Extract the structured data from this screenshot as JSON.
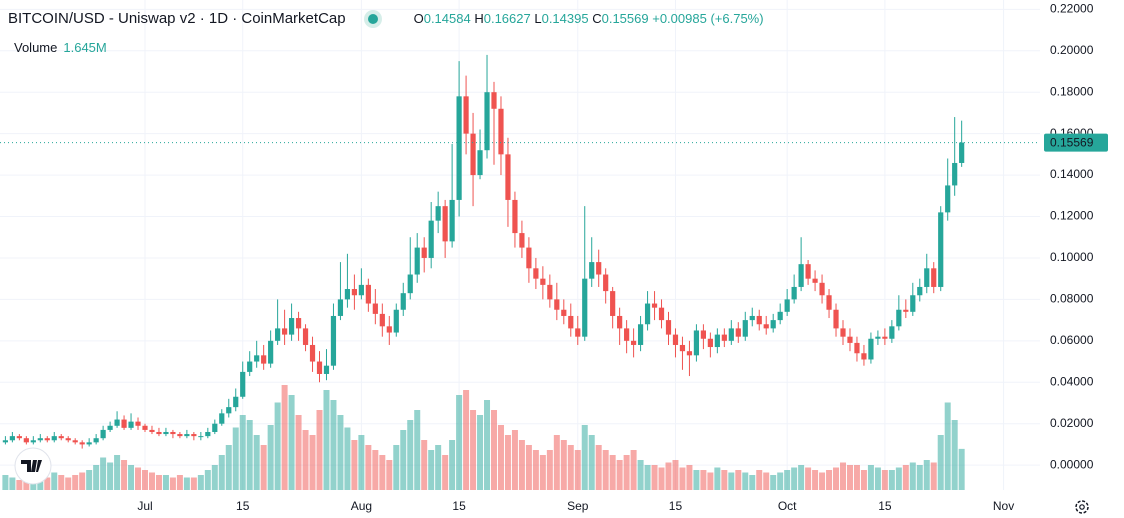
{
  "chart_data": {
    "type": "candlestick",
    "title": "BITCOIN/USD - Uniswap v2 · 1D · CoinMarketCap",
    "ohlc_letters": [
      "O",
      "H",
      "L",
      "C"
    ],
    "change": {
      "value": 0.00985,
      "label": "+0.00985"
    },
    "change_pct": {
      "value": 6.75,
      "label": "(+6.75%)"
    },
    "volume_title": "Volume",
    "volume_last": {
      "value": 1.645,
      "label": "1.645M"
    },
    "up_color": "#26a69a",
    "down_color": "#ef5350",
    "ylim": [
      -0.012,
      0.2245
    ],
    "yticks": [
      {
        "value": 0.22,
        "label": "0.22000"
      },
      {
        "value": 0.2,
        "label": "0.20000"
      },
      {
        "value": 0.18,
        "label": "0.18000"
      },
      {
        "value": 0.16,
        "label": "0.16000"
      },
      {
        "value": 0.14,
        "label": "0.14000"
      },
      {
        "value": 0.12,
        "label": "0.12000"
      },
      {
        "value": 0.1,
        "label": "0.10000"
      },
      {
        "value": 0.08,
        "label": "0.08000"
      },
      {
        "value": 0.06,
        "label": "0.06000"
      },
      {
        "value": 0.04,
        "label": "0.04000"
      },
      {
        "value": 0.02,
        "label": "0.02000"
      },
      {
        "value": 0,
        "label": "0.00000"
      }
    ],
    "xticks": [
      {
        "value": "07-01",
        "label": "Jul"
      },
      {
        "value": "07-15",
        "label": "15"
      },
      {
        "value": "08-01",
        "label": "Aug"
      },
      {
        "value": "08-15",
        "label": "15"
      },
      {
        "value": "09-01",
        "label": "Sep"
      },
      {
        "value": "09-15",
        "label": "15"
      },
      {
        "value": "10-01",
        "label": "Oct"
      },
      {
        "value": "10-15",
        "label": "15"
      },
      {
        "value": "11-01",
        "label": "Nov"
      }
    ],
    "grid": true,
    "x": [
      "06-11",
      "06-12",
      "06-13",
      "06-14",
      "06-15",
      "06-16",
      "06-17",
      "06-18",
      "06-19",
      "06-20",
      "06-21",
      "06-22",
      "06-23",
      "06-24",
      "06-25",
      "06-26",
      "06-27",
      "06-28",
      "06-29",
      "06-30",
      "07-01",
      "07-02",
      "07-03",
      "07-04",
      "07-05",
      "07-06",
      "07-07",
      "07-08",
      "07-09",
      "07-10",
      "07-11",
      "07-12",
      "07-13",
      "07-14",
      "07-15",
      "07-16",
      "07-17",
      "07-18",
      "07-19",
      "07-20",
      "07-21",
      "07-22",
      "07-23",
      "07-24",
      "07-25",
      "07-26",
      "07-27",
      "07-28",
      "07-29",
      "07-30",
      "07-31",
      "08-01",
      "08-02",
      "08-03",
      "08-04",
      "08-05",
      "08-06",
      "08-07",
      "08-08",
      "08-09",
      "08-10",
      "08-11",
      "08-12",
      "08-13",
      "08-14",
      "08-15",
      "08-16",
      "08-17",
      "08-18",
      "08-19",
      "08-20",
      "08-21",
      "08-22",
      "08-23",
      "08-24",
      "08-25",
      "08-26",
      "08-27",
      "08-28",
      "08-29",
      "08-30",
      "08-31",
      "09-01",
      "09-02",
      "09-03",
      "09-04",
      "09-05",
      "09-06",
      "09-07",
      "09-08",
      "09-09",
      "09-10",
      "09-11",
      "09-12",
      "09-13",
      "09-14",
      "09-15",
      "09-16",
      "09-17",
      "09-18",
      "09-19",
      "09-20",
      "09-21",
      "09-22",
      "09-23",
      "09-24",
      "09-25",
      "09-26",
      "09-27",
      "09-28",
      "09-29",
      "09-30",
      "10-01",
      "10-02",
      "10-03",
      "10-04",
      "10-05",
      "10-06",
      "10-07",
      "10-08",
      "10-09",
      "10-10",
      "10-11",
      "10-12",
      "10-13",
      "10-14",
      "10-15",
      "10-16",
      "10-17",
      "10-18",
      "10-19",
      "10-20",
      "10-21",
      "10-22",
      "10-23",
      "10-24",
      "10-25",
      "10-26"
    ],
    "open": [
      0.011,
      0.012,
      0.014,
      0.013,
      0.011,
      0.012,
      0.013,
      0.012,
      0.014,
      0.013,
      0.012,
      0.011,
      0.01,
      0.011,
      0.013,
      0.017,
      0.019,
      0.022,
      0.018,
      0.021,
      0.019,
      0.017,
      0.016,
      0.015,
      0.016,
      0.015,
      0.014,
      0.015,
      0.014,
      0.014,
      0.016,
      0.02,
      0.025,
      0.028,
      0.033,
      0.045,
      0.05,
      0.053,
      0.049,
      0.06,
      0.066,
      0.063,
      0.071,
      0.066,
      0.058,
      0.05,
      0.044,
      0.048,
      0.072,
      0.08,
      0.085,
      0.082,
      0.087,
      0.078,
      0.073,
      0.067,
      0.064,
      0.075,
      0.083,
      0.092,
      0.105,
      0.1,
      0.118,
      0.125,
      0.108,
      0.128,
      0.178,
      0.16,
      0.14,
      0.152,
      0.18,
      0.172,
      0.15,
      0.128,
      0.112,
      0.105,
      0.095,
      0.09,
      0.087,
      0.08,
      0.075,
      0.072,
      0.066,
      0.062,
      0.09,
      0.098,
      0.092,
      0.084,
      0.072,
      0.066,
      0.06,
      0.058,
      0.068,
      0.078,
      0.076,
      0.07,
      0.063,
      0.058,
      0.055,
      0.053,
      0.065,
      0.061,
      0.057,
      0.063,
      0.06,
      0.066,
      0.062,
      0.07,
      0.072,
      0.068,
      0.066,
      0.07,
      0.074,
      0.08,
      0.086,
      0.097,
      0.09,
      0.088,
      0.082,
      0.075,
      0.066,
      0.062,
      0.059,
      0.054,
      0.051,
      0.061,
      0.062,
      0.061,
      0.067,
      0.075,
      0.074,
      0.082,
      0.086,
      0.095,
      0.086,
      0.122,
      0.135,
      0.14584
    ],
    "high": [
      0.014,
      0.016,
      0.015,
      0.014,
      0.014,
      0.015,
      0.014,
      0.016,
      0.015,
      0.014,
      0.013,
      0.012,
      0.013,
      0.015,
      0.019,
      0.021,
      0.026,
      0.024,
      0.025,
      0.023,
      0.02,
      0.019,
      0.018,
      0.018,
      0.017,
      0.016,
      0.017,
      0.016,
      0.016,
      0.018,
      0.022,
      0.027,
      0.032,
      0.037,
      0.05,
      0.055,
      0.06,
      0.058,
      0.065,
      0.08,
      0.075,
      0.078,
      0.074,
      0.068,
      0.062,
      0.055,
      0.056,
      0.078,
      0.098,
      0.102,
      0.092,
      0.095,
      0.09,
      0.085,
      0.078,
      0.072,
      0.078,
      0.088,
      0.11,
      0.112,
      0.11,
      0.127,
      0.132,
      0.128,
      0.155,
      0.195,
      0.188,
      0.17,
      0.162,
      0.198,
      0.185,
      0.178,
      0.158,
      0.132,
      0.118,
      0.11,
      0.1,
      0.096,
      0.092,
      0.088,
      0.08,
      0.078,
      0.072,
      0.125,
      0.11,
      0.104,
      0.095,
      0.086,
      0.076,
      0.07,
      0.066,
      0.072,
      0.084,
      0.084,
      0.08,
      0.074,
      0.066,
      0.062,
      0.06,
      0.068,
      0.068,
      0.064,
      0.066,
      0.066,
      0.07,
      0.069,
      0.074,
      0.076,
      0.075,
      0.072,
      0.073,
      0.078,
      0.085,
      0.092,
      0.11,
      0.099,
      0.094,
      0.092,
      0.085,
      0.078,
      0.07,
      0.066,
      0.062,
      0.058,
      0.064,
      0.065,
      0.066,
      0.07,
      0.082,
      0.08,
      0.088,
      0.09,
      0.102,
      0.098,
      0.125,
      0.148,
      0.168,
      0.16627
    ],
    "low": [
      0.01,
      0.011,
      0.012,
      0.01,
      0.01,
      0.011,
      0.011,
      0.011,
      0.012,
      0.011,
      0.01,
      0.008,
      0.009,
      0.01,
      0.012,
      0.016,
      0.018,
      0.017,
      0.017,
      0.017,
      0.016,
      0.015,
      0.014,
      0.014,
      0.013,
      0.013,
      0.013,
      0.012,
      0.012,
      0.013,
      0.015,
      0.019,
      0.023,
      0.026,
      0.032,
      0.043,
      0.047,
      0.046,
      0.047,
      0.058,
      0.058,
      0.06,
      0.06,
      0.055,
      0.045,
      0.04,
      0.041,
      0.046,
      0.07,
      0.076,
      0.075,
      0.08,
      0.074,
      0.068,
      0.062,
      0.058,
      0.062,
      0.072,
      0.08,
      0.088,
      0.093,
      0.095,
      0.112,
      0.1,
      0.105,
      0.12,
      0.15,
      0.125,
      0.138,
      0.148,
      0.145,
      0.14,
      0.115,
      0.105,
      0.1,
      0.088,
      0.085,
      0.08,
      0.076,
      0.07,
      0.068,
      0.062,
      0.058,
      0.06,
      0.086,
      0.086,
      0.078,
      0.066,
      0.058,
      0.054,
      0.052,
      0.055,
      0.065,
      0.07,
      0.066,
      0.058,
      0.052,
      0.046,
      0.043,
      0.05,
      0.056,
      0.052,
      0.054,
      0.057,
      0.058,
      0.059,
      0.06,
      0.067,
      0.065,
      0.063,
      0.064,
      0.068,
      0.072,
      0.078,
      0.084,
      0.087,
      0.084,
      0.078,
      0.071,
      0.062,
      0.058,
      0.055,
      0.05,
      0.048,
      0.049,
      0.058,
      0.058,
      0.059,
      0.065,
      0.071,
      0.072,
      0.079,
      0.083,
      0.083,
      0.084,
      0.118,
      0.13,
      0.14395
    ],
    "close": [
      0.012,
      0.014,
      0.013,
      0.011,
      0.012,
      0.013,
      0.012,
      0.014,
      0.013,
      0.012,
      0.011,
      0.01,
      0.011,
      0.013,
      0.017,
      0.019,
      0.022,
      0.018,
      0.021,
      0.019,
      0.017,
      0.016,
      0.015,
      0.016,
      0.015,
      0.014,
      0.015,
      0.014,
      0.014,
      0.016,
      0.02,
      0.025,
      0.028,
      0.033,
      0.045,
      0.05,
      0.053,
      0.049,
      0.06,
      0.066,
      0.063,
      0.071,
      0.066,
      0.058,
      0.05,
      0.044,
      0.048,
      0.072,
      0.08,
      0.085,
      0.082,
      0.087,
      0.078,
      0.073,
      0.067,
      0.064,
      0.075,
      0.083,
      0.092,
      0.105,
      0.1,
      0.118,
      0.125,
      0.108,
      0.128,
      0.178,
      0.16,
      0.14,
      0.152,
      0.18,
      0.172,
      0.15,
      0.128,
      0.112,
      0.105,
      0.095,
      0.09,
      0.087,
      0.08,
      0.075,
      0.072,
      0.066,
      0.062,
      0.09,
      0.098,
      0.092,
      0.084,
      0.072,
      0.066,
      0.06,
      0.058,
      0.068,
      0.078,
      0.076,
      0.07,
      0.063,
      0.058,
      0.055,
      0.053,
      0.065,
      0.061,
      0.057,
      0.063,
      0.06,
      0.066,
      0.062,
      0.07,
      0.072,
      0.068,
      0.066,
      0.07,
      0.074,
      0.08,
      0.086,
      0.097,
      0.09,
      0.088,
      0.082,
      0.075,
      0.066,
      0.062,
      0.059,
      0.054,
      0.051,
      0.061,
      0.062,
      0.061,
      0.067,
      0.075,
      0.074,
      0.082,
      0.086,
      0.095,
      0.086,
      0.122,
      0.135,
      0.14584,
      0.15569
    ],
    "volume": [
      0.6,
      0.5,
      0.4,
      0.5,
      0.5,
      0.6,
      0.5,
      0.7,
      0.6,
      0.5,
      0.6,
      0.7,
      0.8,
      1.0,
      1.3,
      1.1,
      1.4,
      1.2,
      1.0,
      0.9,
      0.8,
      0.7,
      0.6,
      0.6,
      0.5,
      0.6,
      0.5,
      0.5,
      0.6,
      0.8,
      1.0,
      1.4,
      1.8,
      2.5,
      3.0,
      2.8,
      2.2,
      1.8,
      2.6,
      3.5,
      4.2,
      3.8,
      3.0,
      2.4,
      2.2,
      3.2,
      4.0,
      3.6,
      3.0,
      2.5,
      2.0,
      2.2,
      1.8,
      1.6,
      1.4,
      1.2,
      1.8,
      2.4,
      2.8,
      3.2,
      2.0,
      1.6,
      1.8,
      1.4,
      2.0,
      3.8,
      4.0,
      3.2,
      3.0,
      3.6,
      3.2,
      2.6,
      2.2,
      2.4,
      2.0,
      1.8,
      1.6,
      1.4,
      1.6,
      2.2,
      2.0,
      1.8,
      1.6,
      2.6,
      2.2,
      1.8,
      1.6,
      1.4,
      1.2,
      1.4,
      1.6,
      1.2,
      1.0,
      1.0,
      0.9,
      1.1,
      1.2,
      0.9,
      1.0,
      0.8,
      0.8,
      0.7,
      0.9,
      0.8,
      0.7,
      0.8,
      0.7,
      0.6,
      0.8,
      0.7,
      0.6,
      0.7,
      0.8,
      0.9,
      1.0,
      0.9,
      0.8,
      0.7,
      0.8,
      0.9,
      1.1,
      1.0,
      1.0,
      0.8,
      1.0,
      0.9,
      0.8,
      0.8,
      0.9,
      1.0,
      1.1,
      1.0,
      1.2,
      1.1,
      2.2,
      3.5,
      2.8,
      1.645
    ]
  }
}
